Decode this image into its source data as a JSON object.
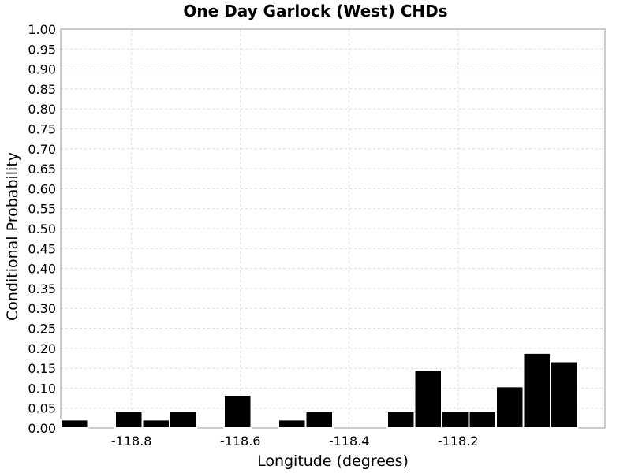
{
  "chart_data": {
    "type": "bar",
    "title": "One Day Garlock (West) CHDs",
    "xlabel": "Longitude (degrees)",
    "ylabel": "Conditional Probability",
    "xlim": [
      -118.93,
      -117.93
    ],
    "ylim": [
      0,
      1
    ],
    "grid": true,
    "bin_width": 0.05,
    "x_ticks": [
      {
        "value": -118.8,
        "label": "-118.8"
      },
      {
        "value": -118.6,
        "label": "-118.6"
      },
      {
        "value": -118.4,
        "label": "-118.4"
      },
      {
        "value": -118.2,
        "label": "-118.2"
      }
    ],
    "y_ticks": [
      {
        "value": 0.0,
        "label": "0.00"
      },
      {
        "value": 0.05,
        "label": "0.05"
      },
      {
        "value": 0.1,
        "label": "0.10"
      },
      {
        "value": 0.15,
        "label": "0.15"
      },
      {
        "value": 0.2,
        "label": "0.20"
      },
      {
        "value": 0.25,
        "label": "0.25"
      },
      {
        "value": 0.3,
        "label": "0.30"
      },
      {
        "value": 0.35,
        "label": "0.35"
      },
      {
        "value": 0.4,
        "label": "0.40"
      },
      {
        "value": 0.45,
        "label": "0.45"
      },
      {
        "value": 0.5,
        "label": "0.50"
      },
      {
        "value": 0.55,
        "label": "0.55"
      },
      {
        "value": 0.6,
        "label": "0.60"
      },
      {
        "value": 0.65,
        "label": "0.65"
      },
      {
        "value": 0.7,
        "label": "0.70"
      },
      {
        "value": 0.75,
        "label": "0.75"
      },
      {
        "value": 0.8,
        "label": "0.80"
      },
      {
        "value": 0.85,
        "label": "0.85"
      },
      {
        "value": 0.9,
        "label": "0.90"
      },
      {
        "value": 0.95,
        "label": "0.95"
      },
      {
        "value": 1.0,
        "label": "1.00"
      }
    ],
    "bars": [
      {
        "x": -118.905,
        "y": 0.021
      },
      {
        "x": -118.805,
        "y": 0.042
      },
      {
        "x": -118.755,
        "y": 0.021
      },
      {
        "x": -118.705,
        "y": 0.042
      },
      {
        "x": -118.605,
        "y": 0.083
      },
      {
        "x": -118.505,
        "y": 0.021
      },
      {
        "x": -118.455,
        "y": 0.042
      },
      {
        "x": -118.305,
        "y": 0.042
      },
      {
        "x": -118.255,
        "y": 0.146
      },
      {
        "x": -118.205,
        "y": 0.042
      },
      {
        "x": -118.155,
        "y": 0.042
      },
      {
        "x": -118.105,
        "y": 0.104
      },
      {
        "x": -118.055,
        "y": 0.188
      },
      {
        "x": -118.005,
        "y": 0.167
      }
    ]
  }
}
